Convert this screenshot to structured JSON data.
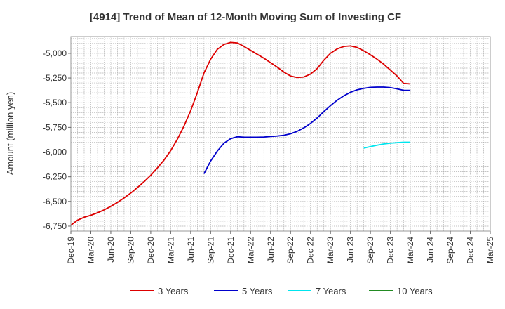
{
  "chart_data": {
    "type": "line",
    "title": "[4914]  Trend of Mean of 12-Month Moving Sum of Investing CF",
    "xlabel": "",
    "ylabel": "Amount (million yen)",
    "ylim": [
      -6800,
      -4830
    ],
    "yticks": [
      -5000,
      -5250,
      -5500,
      -5750,
      -6000,
      -6250,
      -6500,
      -6750
    ],
    "ytick_labels": [
      "-5,000",
      "-5,250",
      "-5,500",
      "-5,750",
      "-6,000",
      "-6,250",
      "-6,500",
      "-6,750"
    ],
    "x_months_range": [
      0,
      63
    ],
    "xticks": [
      0,
      3,
      6,
      9,
      12,
      15,
      18,
      21,
      24,
      27,
      30,
      33,
      36,
      39,
      42,
      45,
      48,
      51,
      54,
      57,
      60,
      63
    ],
    "xtick_labels": [
      "Dec-19",
      "Mar-20",
      "Jun-20",
      "Sep-20",
      "Dec-20",
      "Mar-21",
      "Jun-21",
      "Sep-21",
      "Dec-21",
      "Mar-22",
      "Jun-22",
      "Sep-22",
      "Dec-22",
      "Mar-23",
      "Jun-23",
      "Sep-23",
      "Dec-23",
      "Mar-24",
      "Jun-24",
      "Sep-24",
      "Dec-24",
      "Mar-25"
    ],
    "grid": true,
    "legend_position": "bottom",
    "series": [
      {
        "name": "3 Years",
        "color": "#dd0000",
        "x": [
          0,
          1,
          2,
          3,
          4,
          5,
          6,
          7,
          8,
          9,
          10,
          11,
          12,
          13,
          14,
          15,
          16,
          17,
          18,
          19,
          20,
          21,
          22,
          23,
          24,
          25,
          26,
          27,
          28,
          29,
          30,
          31,
          32,
          33,
          34,
          35,
          36,
          37,
          38,
          39,
          40,
          41,
          42,
          43,
          44,
          45,
          46,
          47,
          48,
          49,
          50,
          51
        ],
        "values": [
          -6740,
          -6690,
          -6660,
          -6640,
          -6615,
          -6585,
          -6550,
          -6510,
          -6465,
          -6415,
          -6360,
          -6300,
          -6235,
          -6160,
          -6080,
          -5985,
          -5870,
          -5735,
          -5580,
          -5400,
          -5200,
          -5060,
          -4960,
          -4910,
          -4890,
          -4895,
          -4930,
          -4970,
          -5010,
          -5050,
          -5095,
          -5140,
          -5190,
          -5230,
          -5245,
          -5240,
          -5210,
          -5155,
          -5070,
          -5000,
          -4955,
          -4930,
          -4925,
          -4940,
          -4975,
          -5015,
          -5060,
          -5110,
          -5170,
          -5230,
          -5305,
          -5310
        ]
      },
      {
        "name": "5 Years",
        "color": "#0000cc",
        "x": [
          20,
          21,
          22,
          23,
          24,
          25,
          26,
          27,
          28,
          29,
          30,
          31,
          32,
          33,
          34,
          35,
          36,
          37,
          38,
          39,
          40,
          41,
          42,
          43,
          44,
          45,
          46,
          47,
          48,
          49,
          50,
          51
        ],
        "values": [
          -6220,
          -6090,
          -5990,
          -5910,
          -5865,
          -5845,
          -5850,
          -5850,
          -5850,
          -5848,
          -5843,
          -5838,
          -5830,
          -5815,
          -5790,
          -5755,
          -5710,
          -5655,
          -5590,
          -5530,
          -5475,
          -5430,
          -5395,
          -5370,
          -5355,
          -5345,
          -5342,
          -5342,
          -5348,
          -5360,
          -5375,
          -5375
        ]
      },
      {
        "name": "7 Years",
        "color": "#00e5ee",
        "x": [
          44,
          45,
          46,
          47,
          48,
          49,
          50,
          51
        ],
        "values": [
          -5960,
          -5945,
          -5930,
          -5918,
          -5910,
          -5905,
          -5900,
          -5900
        ]
      },
      {
        "name": "10 Years",
        "color": "#228b22",
        "x": [],
        "values": []
      }
    ]
  }
}
